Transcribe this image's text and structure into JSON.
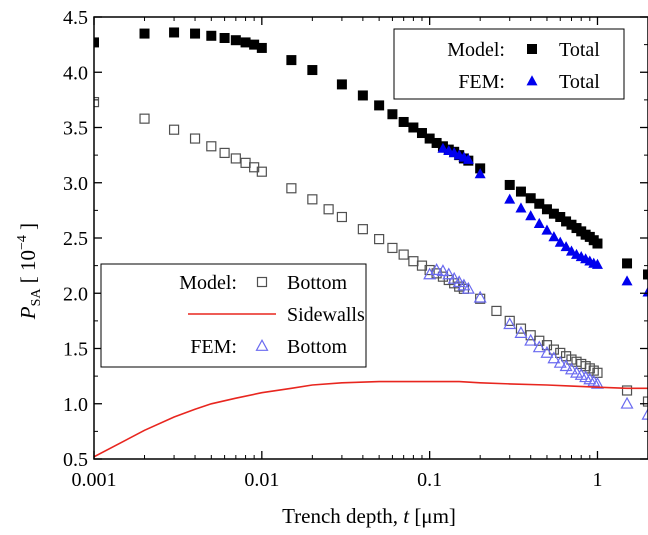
{
  "chart_data": {
    "type": "scatter",
    "xscale": "log",
    "xlim": [
      0.001,
      2
    ],
    "ylim": [
      0.5,
      4.5
    ],
    "xlabel": {
      "prefix": "Trench depth, ",
      "var": "t",
      "suffix": " [μm]"
    },
    "ylabel": {
      "var": "P",
      "sub": "SA",
      "bracket_open": "[",
      "base": "10",
      "exp": "−4",
      "bracket_close": "]"
    },
    "x_ticks": [
      {
        "value": 0.001,
        "label": "0.001"
      },
      {
        "value": 0.01,
        "label": "0.01"
      },
      {
        "value": 0.1,
        "label": "0.1"
      },
      {
        "value": 1,
        "label": "1"
      }
    ],
    "y_ticks": [
      {
        "value": 0.5,
        "label": "0.5"
      },
      {
        "value": 1.0,
        "label": "1.0"
      },
      {
        "value": 1.5,
        "label": "1.5"
      },
      {
        "value": 2.0,
        "label": "2.0"
      },
      {
        "value": 2.5,
        "label": "2.5"
      },
      {
        "value": 3.0,
        "label": "3.0"
      },
      {
        "value": 3.5,
        "label": "3.5"
      },
      {
        "value": 4.0,
        "label": "4.0"
      },
      {
        "value": 4.5,
        "label": "4.5"
      }
    ],
    "series": [
      {
        "key": "model_total",
        "marker": "square-filled",
        "color": "#000000",
        "x": [
          0.001,
          0.002,
          0.003,
          0.004,
          0.005,
          0.006,
          0.007,
          0.008,
          0.009,
          0.01,
          0.015,
          0.02,
          0.03,
          0.04,
          0.05,
          0.06,
          0.07,
          0.08,
          0.09,
          0.1,
          0.11,
          0.12,
          0.13,
          0.14,
          0.15,
          0.16,
          0.17,
          0.2,
          0.3,
          0.35,
          0.4,
          0.45,
          0.5,
          0.55,
          0.6,
          0.65,
          0.7,
          0.75,
          0.8,
          0.85,
          0.9,
          0.95,
          1.0,
          1.5,
          2.0
        ],
        "y": [
          4.27,
          4.35,
          4.36,
          4.35,
          4.33,
          4.31,
          4.29,
          4.27,
          4.25,
          4.22,
          4.11,
          4.02,
          3.89,
          3.79,
          3.7,
          3.62,
          3.55,
          3.5,
          3.45,
          3.4,
          3.36,
          3.33,
          3.3,
          3.28,
          3.25,
          3.22,
          3.2,
          3.13,
          2.98,
          2.92,
          2.86,
          2.81,
          2.76,
          2.72,
          2.69,
          2.65,
          2.62,
          2.59,
          2.56,
          2.53,
          2.51,
          2.48,
          2.45,
          2.27,
          2.17
        ]
      },
      {
        "key": "fem_total",
        "marker": "triangle-filled",
        "color": "#0000ee",
        "x": [
          0.12,
          0.13,
          0.14,
          0.15,
          0.16,
          0.17,
          0.2,
          0.3,
          0.35,
          0.4,
          0.45,
          0.5,
          0.55,
          0.6,
          0.65,
          0.7,
          0.75,
          0.8,
          0.85,
          0.9,
          0.95,
          1.0,
          1.5,
          2.0
        ],
        "y": [
          3.31,
          3.29,
          3.27,
          3.25,
          3.23,
          3.21,
          3.08,
          2.85,
          2.77,
          2.7,
          2.63,
          2.57,
          2.51,
          2.46,
          2.42,
          2.38,
          2.35,
          2.33,
          2.31,
          2.29,
          2.27,
          2.26,
          2.11,
          2.01
        ]
      },
      {
        "key": "model_bottom",
        "marker": "square-open",
        "color": "#505050",
        "x": [
          0.001,
          0.002,
          0.003,
          0.004,
          0.005,
          0.006,
          0.007,
          0.008,
          0.009,
          0.01,
          0.015,
          0.02,
          0.025,
          0.03,
          0.04,
          0.05,
          0.06,
          0.07,
          0.08,
          0.09,
          0.1,
          0.11,
          0.12,
          0.13,
          0.14,
          0.15,
          0.16,
          0.2,
          0.25,
          0.3,
          0.35,
          0.4,
          0.45,
          0.5,
          0.55,
          0.6,
          0.65,
          0.7,
          0.75,
          0.8,
          0.85,
          0.9,
          0.95,
          1.0,
          1.5,
          2.0
        ],
        "y": [
          3.73,
          3.58,
          3.48,
          3.4,
          3.33,
          3.27,
          3.22,
          3.18,
          3.14,
          3.1,
          2.95,
          2.85,
          2.76,
          2.69,
          2.58,
          2.49,
          2.41,
          2.35,
          2.29,
          2.25,
          2.21,
          2.18,
          2.15,
          2.12,
          2.09,
          2.06,
          2.04,
          1.95,
          1.84,
          1.75,
          1.68,
          1.62,
          1.57,
          1.53,
          1.49,
          1.46,
          1.43,
          1.4,
          1.38,
          1.36,
          1.34,
          1.32,
          1.3,
          1.28,
          1.12,
          1.02
        ]
      },
      {
        "key": "fem_bottom",
        "marker": "triangle-open",
        "color": "#6a6af0",
        "x": [
          0.1,
          0.11,
          0.12,
          0.13,
          0.14,
          0.15,
          0.16,
          0.17,
          0.2,
          0.3,
          0.35,
          0.4,
          0.45,
          0.5,
          0.55,
          0.6,
          0.65,
          0.7,
          0.75,
          0.8,
          0.85,
          0.9,
          0.95,
          1.0,
          1.5,
          2.0
        ],
        "y": [
          2.17,
          2.21,
          2.2,
          2.17,
          2.13,
          2.1,
          2.07,
          2.04,
          1.96,
          1.72,
          1.64,
          1.57,
          1.51,
          1.46,
          1.41,
          1.37,
          1.34,
          1.31,
          1.28,
          1.26,
          1.24,
          1.22,
          1.2,
          1.18,
          1.0,
          0.9
        ]
      },
      {
        "key": "model_sidewalls",
        "marker": "line",
        "color": "#e8261f",
        "x": [
          0.001,
          0.0015,
          0.002,
          0.003,
          0.004,
          0.005,
          0.007,
          0.01,
          0.015,
          0.02,
          0.03,
          0.05,
          0.07,
          0.1,
          0.15,
          0.2,
          0.3,
          0.5,
          0.7,
          1.0,
          1.5,
          2.0
        ],
        "y": [
          0.52,
          0.66,
          0.76,
          0.88,
          0.95,
          1.0,
          1.05,
          1.1,
          1.14,
          1.17,
          1.19,
          1.2,
          1.2,
          1.2,
          1.2,
          1.19,
          1.18,
          1.17,
          1.16,
          1.15,
          1.14,
          1.14
        ]
      }
    ],
    "legends": [
      {
        "position": "top-right",
        "rows": [
          {
            "group": "Model:",
            "marker": "square-filled",
            "color": "#000000",
            "label": "Total"
          },
          {
            "group": "FEM:",
            "marker": "triangle-filled",
            "color": "#0000ee",
            "label": "Total"
          }
        ]
      },
      {
        "position": "lower-left",
        "rows": [
          {
            "group": "Model:",
            "marker": "square-open",
            "color": "#505050",
            "label": "Bottom"
          },
          {
            "group": "",
            "marker": "line",
            "color": "#e8261f",
            "label": "Sidewalls"
          },
          {
            "group": "FEM:",
            "marker": "triangle-open",
            "color": "#6a6af0",
            "label": "Bottom"
          }
        ]
      }
    ]
  }
}
